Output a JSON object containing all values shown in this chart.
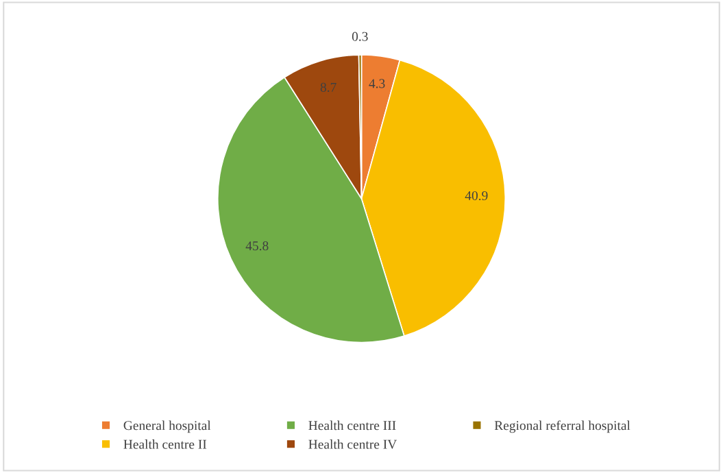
{
  "chart_data": {
    "type": "pie",
    "categories": [
      "General hospital",
      "Health centre II",
      "Health centre III",
      "Health centre IV",
      "Regional referral hospital"
    ],
    "values": [
      4.3,
      40.9,
      45.8,
      8.7,
      0.3
    ],
    "colors": [
      "#ed7d31",
      "#f9be00",
      "#70ad47",
      "#9e480e",
      "#997300"
    ],
    "data_labels": true,
    "legend": "bottom"
  }
}
